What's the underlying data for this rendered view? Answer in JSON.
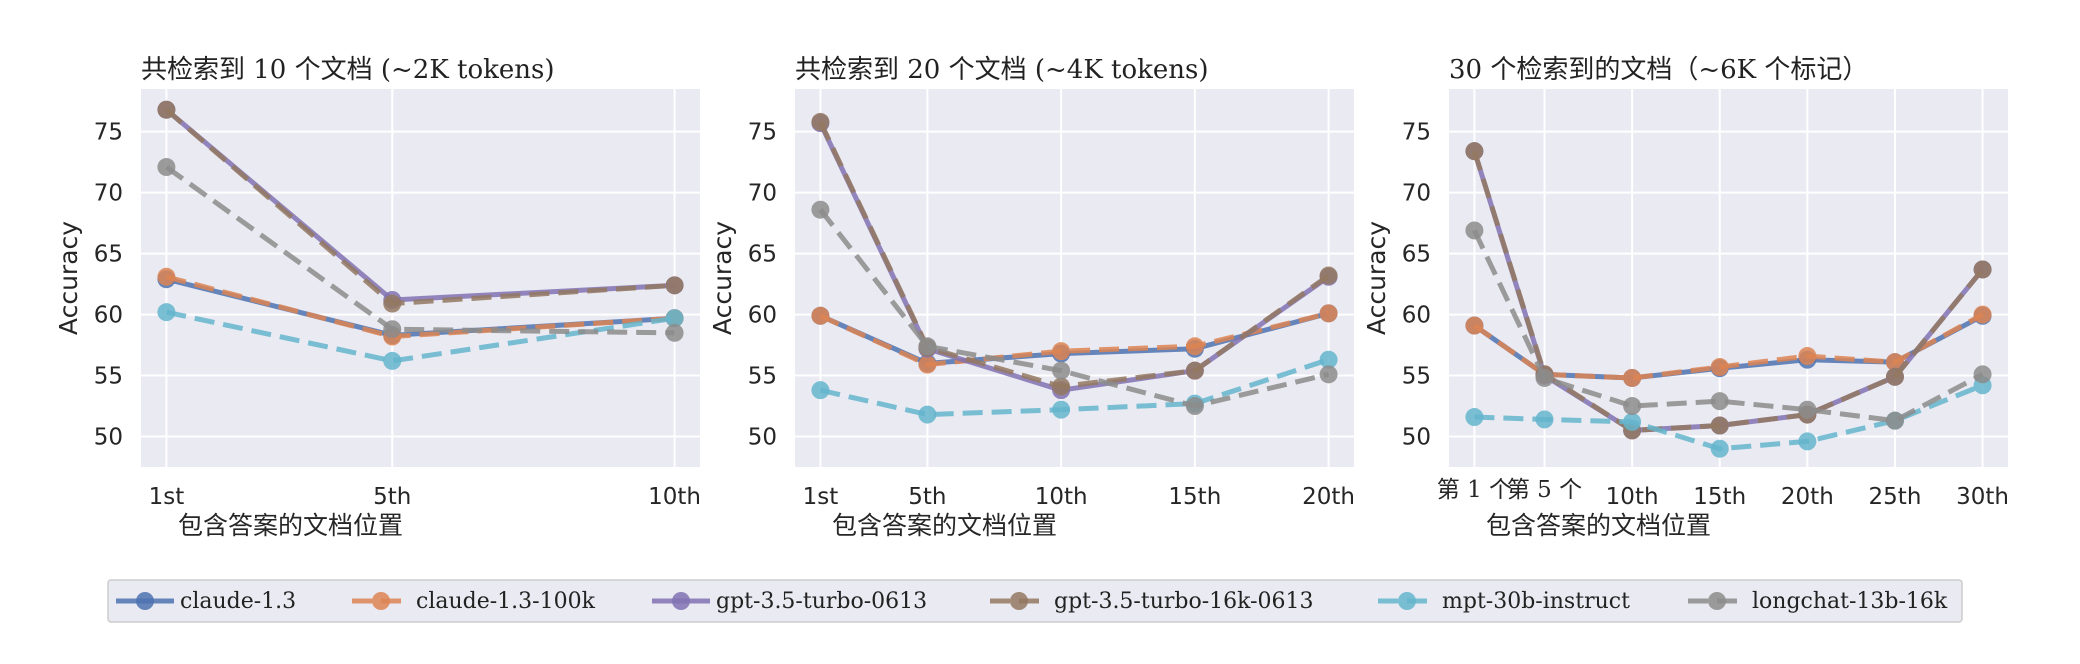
{
  "legend": {
    "entries": [
      {
        "label": "claude-1.3",
        "color": "#4c72b0",
        "dash": false
      },
      {
        "label": "claude-1.3-100k",
        "color": "#dd8452",
        "dash": true
      },
      {
        "label": "gpt-3.5-turbo-0613",
        "color": "#8172b3",
        "dash": false
      },
      {
        "label": "gpt-3.5-turbo-16k-0613",
        "color": "#937860",
        "dash": true
      },
      {
        "label": "mpt-30b-instruct",
        "color": "#64b5cd",
        "dash": true
      },
      {
        "label": "longchat-13b-16k",
        "color": "#8c8c8c",
        "dash": true
      }
    ]
  },
  "chart_data": [
    {
      "type": "line",
      "title": "共检索到 10 个文档 (~2K tokens)",
      "xlabel": "包含答案的文档位置",
      "ylabel": "Accuracy",
      "x": [
        1,
        5,
        10
      ],
      "xticks": [
        1,
        5,
        10
      ],
      "xticklabels": [
        "1st",
        "5th",
        "10th"
      ],
      "xlim": [
        0.55,
        10.45
      ],
      "ylim": [
        47.5,
        78.5
      ],
      "yticks": [
        50,
        55,
        60,
        65,
        70,
        75
      ],
      "grid": true,
      "series": [
        {
          "name": "claude-1.3",
          "values": [
            62.9,
            58.3,
            59.7
          ]
        },
        {
          "name": "claude-1.3-100k",
          "values": [
            63.1,
            58.2,
            59.7
          ]
        },
        {
          "name": "gpt-3.5-turbo-0613",
          "values": [
            76.8,
            61.2,
            62.4
          ]
        },
        {
          "name": "gpt-3.5-turbo-16k-0613",
          "values": [
            76.8,
            60.9,
            62.4
          ]
        },
        {
          "name": "mpt-30b-instruct",
          "values": [
            60.2,
            56.2,
            59.7
          ]
        },
        {
          "name": "longchat-13b-16k",
          "values": [
            72.1,
            58.8,
            58.5
          ]
        }
      ]
    },
    {
      "type": "line",
      "title": "共检索到 20 个文档 (~4K tokens)",
      "xlabel": "包含答案的文档位置",
      "ylabel": "Accuracy",
      "x": [
        1,
        5,
        10,
        15,
        20
      ],
      "xticks": [
        1,
        5,
        10,
        15,
        20
      ],
      "xticklabels": [
        "1st",
        "5th",
        "10th",
        "15th",
        "20th"
      ],
      "xlim": [
        0.05,
        20.95
      ],
      "ylim": [
        47.5,
        78.5
      ],
      "yticks": [
        50,
        55,
        60,
        65,
        70,
        75
      ],
      "grid": true,
      "series": [
        {
          "name": "claude-1.3",
          "values": [
            59.9,
            56.0,
            56.8,
            57.2,
            60.1
          ]
        },
        {
          "name": "claude-1.3-100k",
          "values": [
            59.9,
            55.9,
            57.0,
            57.4,
            60.1
          ]
        },
        {
          "name": "gpt-3.5-turbo-0613",
          "values": [
            75.7,
            57.2,
            53.8,
            55.4,
            63.1
          ]
        },
        {
          "name": "gpt-3.5-turbo-16k-0613",
          "values": [
            75.8,
            57.3,
            54.1,
            55.4,
            63.2
          ]
        },
        {
          "name": "mpt-30b-instruct",
          "values": [
            53.8,
            51.8,
            52.2,
            52.7,
            56.3
          ]
        },
        {
          "name": "longchat-13b-16k",
          "values": [
            68.6,
            57.4,
            55.4,
            52.5,
            55.1
          ]
        }
      ]
    },
    {
      "type": "line",
      "title": "30 个检索到的文档（~6K 个标记）",
      "xlabel": "包含答案的文档位置",
      "ylabel": "Accuracy",
      "x": [
        1,
        5,
        10,
        15,
        20,
        25,
        30
      ],
      "xticks": [
        1,
        5,
        10,
        15,
        20,
        25,
        30
      ],
      "xticklabels": [
        "第 1 个",
        "第 5 个",
        "10th",
        "15th",
        "20th",
        "25th",
        "30th"
      ],
      "xlim": [
        -0.45,
        31.45
      ],
      "ylim": [
        47.5,
        78.5
      ],
      "yticks": [
        50,
        55,
        60,
        65,
        70,
        75
      ],
      "grid": true,
      "series": [
        {
          "name": "claude-1.3",
          "values": [
            59.1,
            55.1,
            54.8,
            55.6,
            56.3,
            56.1,
            59.9
          ]
        },
        {
          "name": "claude-1.3-100k",
          "values": [
            59.1,
            55.1,
            54.8,
            55.7,
            56.6,
            56.1,
            60.0
          ]
        },
        {
          "name": "gpt-3.5-turbo-0613",
          "values": [
            73.4,
            55.0,
            50.5,
            50.9,
            51.8,
            54.9,
            63.7
          ]
        },
        {
          "name": "gpt-3.5-turbo-16k-0613",
          "values": [
            73.4,
            55.1,
            50.5,
            50.9,
            51.8,
            54.9,
            63.7
          ]
        },
        {
          "name": "mpt-30b-instruct",
          "values": [
            51.6,
            51.4,
            51.2,
            49.0,
            49.6,
            51.3,
            54.2
          ]
        },
        {
          "name": "longchat-13b-16k",
          "values": [
            66.9,
            54.8,
            52.5,
            52.9,
            52.2,
            51.3,
            55.1
          ]
        }
      ]
    }
  ]
}
